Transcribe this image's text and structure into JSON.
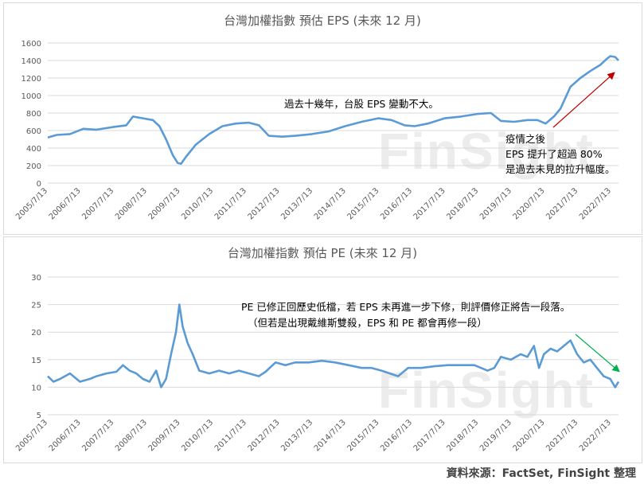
{
  "charts": [
    {
      "title": "台灣加權指數 預估 EPS (未來 12 月)",
      "annotations": [
        "過去十幾年，台股 EPS 變動不大。",
        "疫情之後",
        "EPS 提升了超過 80%",
        "是過去未見的拉升幅度。"
      ],
      "watermark": "FinSight"
    },
    {
      "title": "台灣加權指數 預估 PE (未來 12 月)",
      "annotations": [
        "PE 已修正回歷史低檔，若 EPS 未再進一步下修，則評價修正將告一段落。",
        "（但若是出現戴維斯雙殺，EPS 和 PE 都會再修一段）"
      ],
      "watermark": "FinSight"
    }
  ],
  "source": "資料來源：FactSet, FinSight 整理",
  "colors": {
    "line": "#5b9bd5",
    "grid": "#d9d9d9",
    "arrow_red": "#c00000",
    "arrow_green": "#00b050"
  },
  "chart_data": [
    {
      "type": "line",
      "title": "台灣加權指數 預估 EPS (未來 12 月)",
      "xlabel": "",
      "ylabel": "",
      "ylim": [
        0,
        1600
      ],
      "yticks": [
        0,
        200,
        400,
        600,
        800,
        1000,
        1200,
        1400,
        1600
      ],
      "xticks": [
        "2005/7/13",
        "2006/7/13",
        "2007/7/13",
        "2008/7/13",
        "2009/7/13",
        "2010/7/13",
        "2011/7/13",
        "2012/7/13",
        "2013/7/13",
        "2014/7/13",
        "2015/7/13",
        "2016/7/13",
        "2017/7/13",
        "2018/7/13",
        "2019/7/13",
        "2020/7/13",
        "2021/7/13",
        "2022/7/13"
      ],
      "grid": true,
      "series": [
        {
          "x": [
            2005.53,
            2005.8,
            2006.2,
            2006.6,
            2007.0,
            2007.5,
            2007.9,
            2008.1,
            2008.4,
            2008.7,
            2008.9,
            2009.1,
            2009.3,
            2009.45,
            2009.55,
            2009.7,
            2010.0,
            2010.4,
            2010.8,
            2011.2,
            2011.6,
            2011.9,
            2012.2,
            2012.6,
            2013.0,
            2013.5,
            2014.0,
            2014.5,
            2015.0,
            2015.5,
            2015.9,
            2016.3,
            2016.6,
            2017.0,
            2017.5,
            2018.0,
            2018.5,
            2018.9,
            2019.2,
            2019.6,
            2020.0,
            2020.3,
            2020.55,
            2020.8,
            2021.0,
            2021.3,
            2021.6,
            2021.9,
            2022.2,
            2022.4,
            2022.5,
            2022.65,
            2022.75
          ],
          "values": [
            520,
            550,
            560,
            620,
            610,
            640,
            660,
            760,
            740,
            720,
            650,
            500,
            320,
            230,
            220,
            300,
            440,
            560,
            650,
            680,
            690,
            660,
            540,
            530,
            540,
            560,
            590,
            650,
            700,
            740,
            720,
            660,
            650,
            680,
            740,
            760,
            790,
            800,
            710,
            700,
            720,
            720,
            680,
            760,
            850,
            1100,
            1200,
            1280,
            1350,
            1420,
            1450,
            1440,
            1400
          ]
        }
      ]
    },
    {
      "type": "line",
      "title": "台灣加權指數 預估 PE (未來 12 月)",
      "xlabel": "",
      "ylabel": "",
      "ylim": [
        5,
        30
      ],
      "yticks": [
        5,
        10,
        15,
        20,
        25,
        30
      ],
      "xticks": [
        "2005/7/13",
        "2006/7/13",
        "2007/7/13",
        "2008/7/13",
        "2009/7/13",
        "2010/7/13",
        "2011/7/13",
        "2012/7/13",
        "2013/7/13",
        "2014/7/13",
        "2015/7/13",
        "2016/7/13",
        "2017/7/13",
        "2018/7/13",
        "2019/7/13",
        "2020/7/13",
        "2021/7/13",
        "2022/7/13"
      ],
      "grid": true,
      "series": [
        {
          "x": [
            2005.53,
            2005.7,
            2005.9,
            2006.2,
            2006.5,
            2006.8,
            2007.0,
            2007.3,
            2007.6,
            2007.8,
            2008.0,
            2008.2,
            2008.4,
            2008.6,
            2008.8,
            2008.95,
            2009.1,
            2009.25,
            2009.4,
            2009.5,
            2009.6,
            2009.75,
            2009.9,
            2010.1,
            2010.4,
            2010.7,
            2011.0,
            2011.3,
            2011.6,
            2011.9,
            2012.1,
            2012.4,
            2012.7,
            2013.0,
            2013.4,
            2013.8,
            2014.2,
            2014.6,
            2015.0,
            2015.3,
            2015.6,
            2015.85,
            2016.1,
            2016.4,
            2016.8,
            2017.2,
            2017.6,
            2018.0,
            2018.4,
            2018.8,
            2019.0,
            2019.2,
            2019.5,
            2019.8,
            2020.0,
            2020.2,
            2020.35,
            2020.5,
            2020.7,
            2020.9,
            2021.1,
            2021.3,
            2021.5,
            2021.7,
            2021.9,
            2022.1,
            2022.3,
            2022.5,
            2022.65,
            2022.75
          ],
          "values": [
            12.0,
            11.0,
            11.5,
            12.5,
            11.0,
            11.5,
            12.0,
            12.5,
            12.8,
            14.0,
            13.0,
            12.5,
            11.5,
            11.0,
            13.0,
            10.0,
            11.5,
            16.0,
            20.0,
            25.0,
            21.0,
            18.0,
            16.0,
            13.0,
            12.5,
            13.0,
            12.5,
            13.0,
            12.5,
            12.0,
            12.8,
            14.5,
            14.0,
            14.5,
            14.5,
            14.8,
            14.5,
            14.0,
            13.5,
            13.5,
            13.0,
            12.5,
            12.0,
            13.5,
            13.5,
            13.8,
            14.0,
            14.0,
            14.0,
            13.0,
            13.5,
            15.5,
            15.0,
            16.0,
            15.5,
            17.5,
            13.5,
            16.0,
            17.0,
            16.5,
            17.5,
            18.5,
            16.0,
            14.5,
            15.0,
            13.5,
            12.0,
            11.5,
            10.0,
            11.0
          ]
        }
      ]
    }
  ]
}
